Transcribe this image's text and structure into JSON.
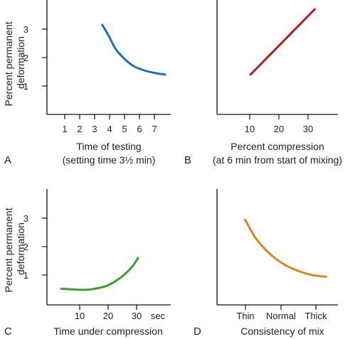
{
  "chart_data": [
    {
      "panel": "A",
      "type": "line",
      "ylabel": [
        "Percent permanent",
        "deformation"
      ],
      "xlabel": [
        "Time of testing",
        "(setting time 3½ min)"
      ],
      "xticks": [
        "1",
        "2",
        "3",
        "4",
        "5",
        "6",
        "7"
      ],
      "yticks": [
        "1",
        "2",
        "3"
      ],
      "xlim": [
        0,
        8
      ],
      "ylim": [
        0,
        4
      ],
      "series": [
        {
          "color": "#1f6fbf",
          "x": [
            3.7,
            4.1,
            4.6,
            5.2,
            5.8,
            6.5,
            7.2,
            7.9
          ],
          "y": [
            3.15,
            2.8,
            2.3,
            1.95,
            1.7,
            1.55,
            1.46,
            1.4
          ]
        }
      ]
    },
    {
      "panel": "B",
      "type": "line",
      "ylabel": [],
      "xlabel": [
        "Percent compression",
        "(at 6 min from start of mixing)"
      ],
      "xticks": [
        "10",
        "20",
        "30"
      ],
      "yticks": [],
      "xlim": [
        0,
        37
      ],
      "ylim": [
        0,
        4
      ],
      "series": [
        {
          "color": "#b01c1c",
          "x": [
            11.5,
            33.5
          ],
          "y": [
            1.4,
            3.7
          ]
        }
      ]
    },
    {
      "panel": "C",
      "type": "line",
      "ylabel": [
        "Percent permanent",
        "deformation"
      ],
      "xlabel": [
        "Time under compression"
      ],
      "xticks": [
        "10",
        "20",
        "30"
      ],
      "xunit": "sec",
      "yticks": [
        "1",
        "2",
        "3"
      ],
      "xlim": [
        0,
        40
      ],
      "ylim": [
        0,
        4
      ],
      "series": [
        {
          "color": "#3e9e2a",
          "x": [
            5,
            8,
            12,
            15,
            18,
            21,
            24,
            27,
            30,
            32
          ],
          "y": [
            0.52,
            0.5,
            0.48,
            0.49,
            0.54,
            0.62,
            0.78,
            1.0,
            1.3,
            1.6
          ]
        }
      ]
    },
    {
      "panel": "D",
      "type": "line",
      "ylabel": [],
      "xlabel": [
        "Consistency of mix"
      ],
      "xticks": [
        "Thin",
        "Normal",
        "Thick"
      ],
      "yticks": [],
      "xlim": [
        0,
        4
      ],
      "ylim": [
        0,
        4
      ],
      "series": [
        {
          "color": "#d9891c",
          "x": [
            1,
            1.3,
            1.7,
            2.1,
            2.5,
            2.9,
            3.3
          ],
          "y": [
            2.95,
            2.3,
            1.75,
            1.38,
            1.15,
            1.0,
            0.94
          ]
        }
      ]
    }
  ]
}
